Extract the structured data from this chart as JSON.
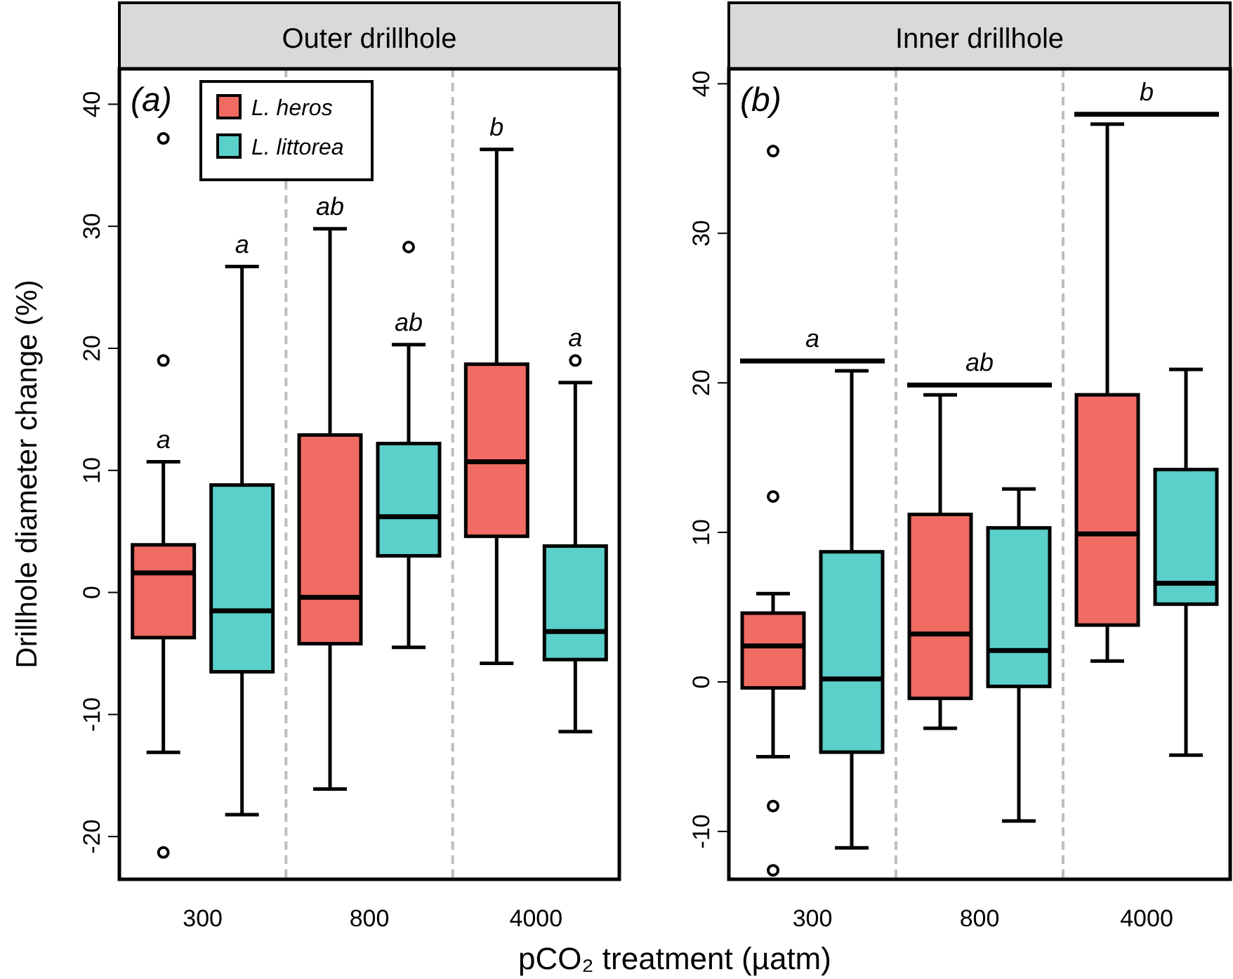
{
  "chart_data": [
    {
      "type": "box",
      "title": "Outer drillhole",
      "xlabel": "pCO₂ treatment (µatm)",
      "ylabel": "Drillhole diameter change (%)",
      "categories": [
        "300",
        "800",
        "4000"
      ],
      "ylim": [
        -23.5,
        42.9
      ],
      "yticks": [
        -20,
        -10,
        0,
        10,
        20,
        30,
        40
      ],
      "legend": "top left",
      "annotations": [
        "(a)"
      ],
      "series": [
        {
          "name": "L. heros",
          "color": "#f06b62",
          "value_labels": [
            "a",
            "ab",
            "b"
          ],
          "boxes": [
            {
              "low": -13.1,
              "q1": -3.7,
              "median": 1.6,
              "q3": 3.9,
              "high": 10.7,
              "outliers": [
                19.0,
                -21.3,
                37.2
              ]
            },
            {
              "low": -16.1,
              "q1": -4.2,
              "median": -0.4,
              "q3": 12.9,
              "high": 29.8
            },
            {
              "low": -5.8,
              "q1": 4.6,
              "median": 10.7,
              "q3": 18.7,
              "high": 36.3
            }
          ]
        },
        {
          "name": "L. littorea",
          "color": "#5bcfca",
          "value_labels": [
            "a",
            "ab",
            "a"
          ],
          "boxes": [
            {
              "low": -18.2,
              "q1": -6.5,
              "median": -1.5,
              "q3": 8.8,
              "high": 26.7
            },
            {
              "low": -4.5,
              "q1": 3.0,
              "median": 6.2,
              "q3": 12.2,
              "high": 20.3,
              "outliers": [
                28.3
              ]
            },
            {
              "low": -11.4,
              "q1": -5.5,
              "median": -3.2,
              "q3": 3.8,
              "high": 17.2,
              "outliers": [
                19.0
              ]
            }
          ]
        }
      ]
    },
    {
      "type": "box",
      "title": "Inner drillhole",
      "categories": [
        "300",
        "800",
        "4000"
      ],
      "ylim": [
        -13.2,
        41.0
      ],
      "yticks": [
        -10,
        0,
        10,
        20,
        30,
        40
      ],
      "annotations": [
        "(b)",
        "a",
        "ab",
        "b"
      ],
      "series": [
        {
          "color": "#f06b62",
          "boxes": [
            {
              "low": -5.0,
              "q1": -0.4,
              "median": 2.4,
              "q3": 4.6,
              "high": 5.9,
              "outliers": [
                35.5,
                12.4,
                -8.3,
                -12.6
              ]
            },
            {
              "low": -3.1,
              "q1": -1.1,
              "median": 3.2,
              "q3": 11.2,
              "high": 19.2
            },
            {
              "low": 1.4,
              "q1": 3.8,
              "median": 9.9,
              "q3": 19.2,
              "high": 37.3
            }
          ]
        },
        {
          "color": "#5bcfca",
          "boxes": [
            {
              "low": -11.1,
              "q1": -4.7,
              "median": 0.2,
              "q3": 8.7,
              "high": 20.8
            },
            {
              "low": -9.3,
              "q1": -0.3,
              "median": 2.1,
              "q3": 10.3,
              "high": 12.9
            },
            {
              "low": -4.9,
              "q1": 5.2,
              "median": 6.6,
              "q3": 14.2,
              "high": 20.9
            }
          ]
        }
      ]
    }
  ]
}
